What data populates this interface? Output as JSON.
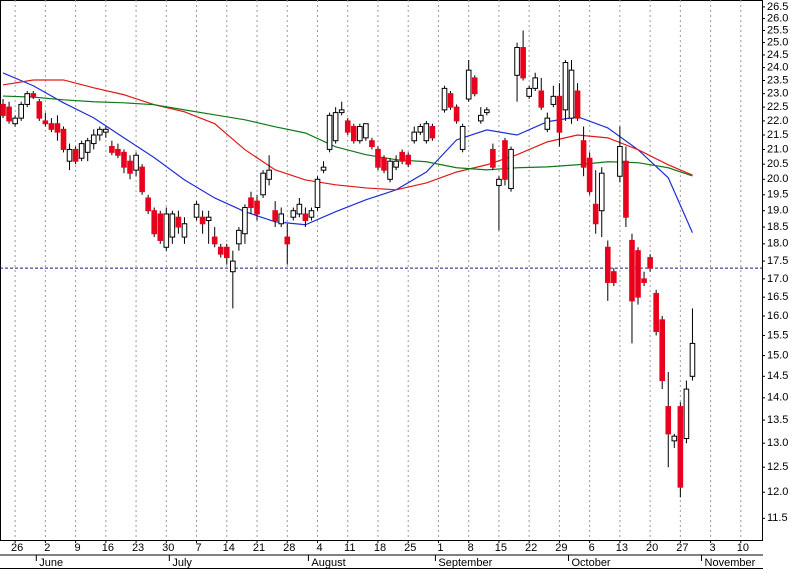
{
  "chart_data": {
    "type": "candlestick",
    "log_scale": true,
    "up_color": "#ffffff",
    "down_color": "#e8001c",
    "wick_color": "#000000",
    "ylim": [
      11.1,
      26.8
    ],
    "yticks": [
      11.5,
      {
        "value": 12,
        "label": "12.0"
      },
      12.5,
      {
        "value": 13,
        "label": "13.0"
      },
      13.5,
      {
        "value": 14,
        "label": "14.0"
      },
      14.5,
      {
        "value": 15,
        "label": "15.0"
      },
      15.5,
      {
        "value": 16,
        "label": "16.0"
      },
      16.5,
      {
        "value": 17,
        "label": "17.0"
      },
      17.5,
      {
        "value": 18,
        "label": "18.0"
      },
      18.5,
      {
        "value": 19,
        "label": "19.0"
      },
      19.5,
      {
        "value": 20,
        "label": "20.0"
      },
      20.5,
      {
        "value": 21,
        "label": "21.0"
      },
      21.5,
      {
        "value": 22,
        "label": "22.0"
      },
      22.5,
      {
        "value": 23,
        "label": "23.0"
      },
      23.5,
      {
        "value": 24,
        "label": "24.0"
      },
      24.5,
      {
        "value": 25,
        "label": "25.0"
      },
      25.5,
      {
        "value": 26,
        "label": "26.0"
      },
      26.5
    ],
    "xlim": [
      -0.5,
      125.5
    ],
    "xticks": [
      {
        "value": 2,
        "label": "26"
      },
      {
        "value": 7,
        "label": "2"
      },
      {
        "value": 12,
        "label": "9"
      },
      {
        "value": 17,
        "label": "16"
      },
      {
        "value": 22,
        "label": "23"
      },
      {
        "value": 27,
        "label": "30"
      },
      {
        "value": 32,
        "label": "7"
      },
      {
        "value": 37,
        "label": "14"
      },
      {
        "value": 42,
        "label": "21"
      },
      {
        "value": 47,
        "label": "28"
      },
      {
        "value": 52,
        "label": "4"
      },
      {
        "value": 57,
        "label": "11"
      },
      {
        "value": 62,
        "label": "18"
      },
      {
        "value": 67,
        "label": "25"
      },
      {
        "value": 72,
        "label": "1"
      },
      {
        "value": 77,
        "label": "8"
      },
      {
        "value": 82,
        "label": "15"
      },
      {
        "value": 87,
        "label": "22"
      },
      {
        "value": 92,
        "label": "29"
      },
      {
        "value": 97,
        "label": "6"
      },
      {
        "value": 102,
        "label": "13"
      },
      {
        "value": 107,
        "label": "20"
      },
      {
        "value": 112,
        "label": "27"
      },
      {
        "value": 117,
        "label": "3"
      },
      {
        "value": 122,
        "label": "10"
      }
    ],
    "month_labels": [
      {
        "value": 5.5,
        "label": "June"
      },
      {
        "value": 27.5,
        "label": "July"
      },
      {
        "value": 50.5,
        "label": "August"
      },
      {
        "value": 71.5,
        "label": "September"
      },
      {
        "value": 93.5,
        "label": "October"
      },
      {
        "value": 115.5,
        "label": "November"
      }
    ],
    "grid": true,
    "reference_line": 17.3,
    "x": [
      0,
      1,
      2,
      3,
      4,
      5,
      6,
      7,
      8,
      9,
      10,
      11,
      12,
      13,
      14,
      15,
      16,
      17,
      18,
      19,
      20,
      21,
      22,
      23,
      24,
      25,
      26,
      27,
      28,
      29,
      30,
      32,
      33,
      34,
      35,
      36,
      37,
      38,
      39,
      40,
      41,
      42,
      43,
      44,
      45,
      46,
      47,
      48,
      49,
      50,
      51,
      52,
      53,
      54,
      55,
      56,
      57,
      58,
      59,
      60,
      61,
      62,
      63,
      64,
      65,
      66,
      67,
      68,
      69,
      70,
      71,
      73,
      74,
      75,
      76,
      77,
      78,
      79,
      80,
      81,
      82,
      83,
      84,
      85,
      86,
      87,
      88,
      89,
      90,
      91,
      92,
      93,
      94,
      95,
      96,
      97,
      98,
      99,
      100,
      101,
      102,
      103,
      104,
      105,
      106,
      107,
      108,
      109,
      110,
      111,
      112,
      113,
      114
    ],
    "open": [
      22.6,
      22.5,
      21.9,
      22.1,
      22.6,
      23.0,
      22.7,
      22.0,
      21.9,
      21.9,
      21.7,
      20.6,
      21.0,
      20.7,
      20.9,
      21.2,
      21.5,
      21.6,
      21.1,
      21.0,
      20.9,
      20.6,
      20.3,
      20.4,
      19.4,
      19.0,
      18.9,
      17.9,
      18.2,
      18.8,
      18.2,
      18.8,
      18.8,
      18.7,
      18.2,
      17.9,
      17.9,
      17.2,
      18.0,
      18.3,
      19.4,
      19.3,
      19.5,
      20.0,
      19.0,
      18.6,
      18.2,
      18.8,
      18.9,
      18.9,
      18.8,
      19.1,
      20.3,
      21.0,
      21.3,
      22.3,
      22.0,
      21.8,
      21.3,
      21.4,
      21.3,
      21.0,
      20.7,
      20.0,
      20.4,
      20.9,
      20.8,
      21.3,
      21.6,
      21.3,
      21.8,
      22.4,
      23.0,
      22.5,
      21.0,
      22.8,
      23.6,
      22.0,
      22.3,
      21.0,
      19.8,
      21.3,
      19.7,
      23.7,
      24.8,
      22.9,
      23.2,
      23.1,
      21.7,
      22.6,
      22.9,
      22.4,
      22.1,
      23.1,
      21.3,
      20.7,
      19.2,
      19.0,
      17.9,
      17.2,
      20.1,
      20.6,
      18.1,
      17.8,
      17.0,
      17.6,
      16.6,
      15.9,
      13.8,
      13.05,
      13.8,
      13.1,
      14.5
    ],
    "high": [
      22.8,
      22.7,
      22.2,
      22.7,
      23.1,
      23.1,
      22.8,
      22.3,
      22.1,
      22.2,
      21.8,
      21.2,
      21.1,
      21.3,
      21.4,
      21.7,
      21.8,
      21.8,
      21.3,
      21.2,
      21.0,
      20.8,
      20.9,
      20.5,
      19.5,
      19.1,
      19.0,
      19.1,
      19.0,
      19.0,
      18.8,
      19.3,
      19.0,
      19.0,
      18.5,
      18.0,
      18.0,
      17.8,
      18.5,
      19.2,
      19.6,
      19.5,
      20.3,
      20.8,
      19.3,
      19.1,
      18.6,
      19.1,
      19.4,
      19.1,
      19.1,
      20.1,
      20.6,
      22.3,
      22.5,
      22.7,
      22.1,
      21.9,
      21.9,
      21.9,
      21.4,
      21.1,
      20.8,
      20.7,
      20.8,
      21.0,
      20.9,
      21.8,
      21.9,
      22.0,
      21.9,
      23.3,
      23.1,
      22.6,
      21.9,
      24.3,
      23.7,
      22.5,
      22.5,
      21.2,
      20.1,
      21.4,
      21.1,
      25.0,
      25.5,
      23.3,
      23.8,
      23.6,
      22.3,
      23.3,
      23.4,
      24.3,
      24.3,
      23.4,
      21.8,
      20.9,
      20.3,
      20.4,
      18.1,
      17.3,
      21.8,
      21.1,
      18.3,
      17.9,
      17.2,
      17.7,
      16.7,
      16.0,
      14.6,
      13.2,
      13.9,
      14.4,
      16.2
    ],
    "low": [
      22.1,
      21.9,
      21.8,
      22.0,
      22.5,
      22.8,
      22.0,
      21.8,
      21.6,
      21.3,
      20.9,
      20.3,
      20.5,
      20.6,
      20.6,
      21.0,
      21.3,
      21.4,
      20.8,
      20.7,
      20.2,
      20.0,
      20.1,
      19.5,
      18.9,
      18.2,
      18.0,
      17.8,
      18.0,
      18.3,
      18.0,
      18.7,
      18.3,
      18.0,
      17.9,
      17.6,
      17.4,
      16.2,
      17.8,
      18.0,
      18.9,
      18.7,
      19.4,
      19.8,
      18.5,
      18.5,
      17.4,
      18.7,
      18.8,
      18.5,
      18.7,
      19.0,
      20.2,
      20.9,
      21.2,
      22.2,
      21.5,
      21.2,
      21.2,
      21.3,
      21.0,
      20.3,
      20.2,
      19.9,
      20.3,
      20.5,
      20.4,
      21.2,
      21.5,
      21.2,
      21.3,
      22.3,
      22.4,
      21.9,
      20.9,
      22.7,
      22.9,
      21.9,
      22.2,
      20.3,
      18.4,
      19.8,
      19.6,
      22.7,
      23.5,
      22.8,
      23.1,
      22.4,
      21.6,
      22.5,
      21.1,
      22.0,
      21.9,
      22.0,
      20.1,
      19.5,
      18.3,
      18.2,
      16.4,
      16.8,
      19.9,
      18.5,
      15.3,
      16.3,
      16.8,
      17.2,
      15.5,
      14.2,
      12.5,
      12.9,
      11.9,
      13.0,
      14.4
    ],
    "close": [
      22.2,
      22.0,
      22.1,
      22.6,
      23.0,
      22.9,
      22.1,
      21.9,
      21.7,
      21.6,
      21.0,
      21.0,
      20.6,
      21.2,
      21.3,
      21.5,
      21.7,
      21.7,
      20.9,
      20.8,
      20.4,
      20.2,
      20.8,
      19.6,
      19.0,
      18.3,
      18.1,
      18.9,
      18.9,
      18.5,
      18.6,
      19.2,
      18.6,
      18.8,
      18.0,
      17.7,
      17.6,
      17.5,
      18.4,
      19.1,
      19.1,
      18.9,
      20.2,
      20.3,
      18.7,
      18.9,
      18.0,
      19.0,
      19.2,
      18.7,
      19.0,
      20.0,
      20.4,
      22.2,
      22.3,
      22.4,
      21.6,
      21.3,
      21.8,
      21.9,
      21.1,
      20.4,
      20.3,
      20.6,
      20.6,
      20.6,
      20.5,
      21.6,
      21.8,
      21.9,
      21.4,
      23.2,
      22.5,
      22.0,
      21.8,
      23.9,
      23.0,
      22.2,
      22.4,
      20.4,
      20.0,
      20.0,
      21.0,
      24.8,
      23.6,
      23.2,
      23.6,
      22.5,
      22.1,
      22.9,
      21.6,
      24.2,
      23.9,
      22.1,
      20.4,
      19.6,
      18.6,
      20.2,
      16.9,
      16.9,
      21.1,
      18.8,
      16.4,
      16.5,
      16.9,
      17.3,
      15.6,
      14.4,
      13.2,
      13.15,
      12.1,
      14.2,
      15.3
    ],
    "moving_averages": [
      {
        "color": "#1f2fd6",
        "x": [
          0,
          5,
          10,
          15,
          20,
          25,
          30,
          35,
          40,
          45,
          50,
          55,
          60,
          65,
          70,
          75,
          80,
          85,
          90,
          95,
          100,
          105,
          110,
          114
        ],
        "values": [
          23.79,
          23.3,
          22.66,
          22.11,
          21.4,
          20.72,
          19.98,
          19.4,
          18.97,
          18.66,
          18.57,
          18.97,
          19.34,
          19.66,
          20.24,
          21.33,
          21.68,
          21.5,
          21.97,
          22.15,
          21.75,
          20.99,
          20.05,
          18.33
        ]
      },
      {
        "color": "#e01818",
        "x": [
          0,
          5,
          10,
          15,
          20,
          25,
          30,
          35,
          40,
          45,
          50,
          55,
          60,
          65,
          70,
          75,
          80,
          85,
          90,
          95,
          100,
          105,
          110,
          114
        ],
        "values": [
          23.33,
          23.52,
          23.52,
          23.22,
          22.96,
          22.59,
          22.33,
          21.9,
          20.99,
          20.31,
          19.98,
          19.82,
          19.72,
          19.66,
          19.88,
          20.24,
          20.48,
          20.82,
          21.26,
          21.5,
          21.4,
          20.99,
          20.48,
          20.14
        ]
      },
      {
        "color": "#0f7a1a",
        "x": [
          0,
          5,
          10,
          15,
          20,
          25,
          30,
          35,
          40,
          45,
          50,
          55,
          60,
          65,
          70,
          75,
          80,
          85,
          90,
          95,
          100,
          105,
          110,
          114
        ],
        "values": [
          22.91,
          22.87,
          22.77,
          22.7,
          22.66,
          22.59,
          22.4,
          22.22,
          22.04,
          21.79,
          21.57,
          21.09,
          20.82,
          20.65,
          20.58,
          20.38,
          20.31,
          20.38,
          20.41,
          20.48,
          20.58,
          20.55,
          20.38,
          20.11
        ]
      }
    ]
  }
}
